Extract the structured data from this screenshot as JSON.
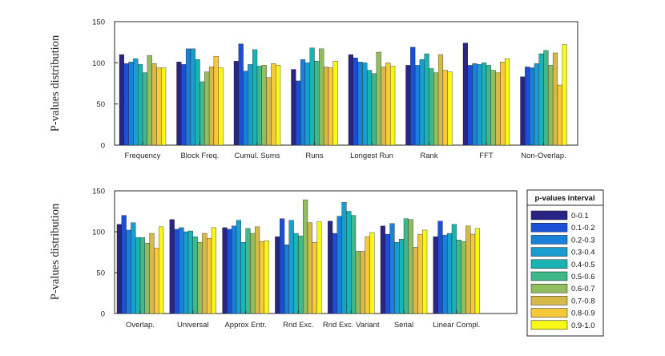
{
  "chart_data": [
    {
      "type": "bar",
      "panel": "top",
      "ylabel": "P-values distribution",
      "ylim": [
        0,
        150
      ],
      "yticks": [
        "0",
        "50",
        "100",
        "150"
      ],
      "categories": [
        "Frequency",
        "Block Freq.",
        "Cumul. Sums",
        "Runs",
        "Longest Run",
        "Rank",
        "FFT",
        "Non-Overlap."
      ],
      "series": [
        {
          "name": "0-0.1",
          "values": [
            110,
            101,
            102,
            92,
            110,
            97,
            124,
            83
          ]
        },
        {
          "name": "0.1-0.2",
          "values": [
            99,
            98,
            123,
            78,
            106,
            119,
            97,
            95
          ]
        },
        {
          "name": "0.2-0.3",
          "values": [
            101,
            117,
            90,
            104,
            101,
            97,
            99,
            94
          ]
        },
        {
          "name": "0.3-0.4",
          "values": [
            105,
            117,
            98,
            100,
            100,
            104,
            98,
            99
          ]
        },
        {
          "name": "0.4-0.5",
          "values": [
            98,
            104,
            116,
            118,
            91,
            111,
            100,
            111
          ]
        },
        {
          "name": "0.5-0.6",
          "values": [
            88,
            77,
            96,
            102,
            87,
            93,
            97,
            115
          ]
        },
        {
          "name": "0.6-0.7",
          "values": [
            109,
            89,
            97,
            117,
            113,
            88,
            91,
            97
          ]
        },
        {
          "name": "0.7-0.8",
          "values": [
            99,
            95,
            82,
            95,
            95,
            110,
            88,
            112
          ]
        },
        {
          "name": "0.8-0.9",
          "values": [
            94,
            108,
            99,
            94,
            100,
            91,
            101,
            73
          ]
        },
        {
          "name": "0.9-1.0",
          "values": [
            94,
            94,
            97,
            102,
            96,
            89,
            105,
            122
          ]
        }
      ]
    },
    {
      "type": "bar",
      "panel": "bottom",
      "ylabel": "P-values distribution",
      "ylim": [
        0,
        150
      ],
      "yticks": [
        "0",
        "50",
        "100",
        "150"
      ],
      "categories": [
        "Overlap.",
        "Universal",
        "Approx Entr.",
        "Rnd Exc.",
        "Rnd Exc. Variant",
        "Serial",
        "Linear Compl."
      ],
      "series": [
        {
          "name": "0-0.1",
          "values": [
            109,
            115,
            105,
            94,
            113,
            107,
            94
          ]
        },
        {
          "name": "0.1-0.2",
          "values": [
            120,
            103,
            103,
            116,
            98,
            97,
            113
          ]
        },
        {
          "name": "0.2-0.3",
          "values": [
            102,
            105,
            107,
            84,
            119,
            110,
            96
          ]
        },
        {
          "name": "0.3-0.4",
          "values": [
            111,
            100,
            114,
            114,
            136,
            87,
            98
          ]
        },
        {
          "name": "0.4-0.5",
          "values": [
            93,
            101,
            87,
            98,
            125,
            91,
            109
          ]
        },
        {
          "name": "0.5-0.6",
          "values": [
            93,
            94,
            104,
            95,
            120,
            116,
            90
          ]
        },
        {
          "name": "0.6-0.7",
          "values": [
            86,
            87,
            98,
            139,
            76,
            115,
            88
          ]
        },
        {
          "name": "0.7-0.8",
          "values": [
            98,
            98,
            106,
            111,
            76,
            81,
            107
          ]
        },
        {
          "name": "0.8-0.9",
          "values": [
            80,
            92,
            88,
            87,
            94,
            97,
            97
          ]
        },
        {
          "name": "0.9-1.0",
          "values": [
            106,
            105,
            89,
            112,
            99,
            102,
            104
          ]
        }
      ]
    }
  ],
  "legend": {
    "title": "p-values interval",
    "placement": "right of bottom panel",
    "items": [
      "0-0.1",
      "0.1-0.2",
      "0.2-0.3",
      "0.3-0.4",
      "0.4-0.5",
      "0.5-0.6",
      "0.6-0.7",
      "0.7-0.8",
      "0.8-0.9",
      "0.9-1.0"
    ]
  },
  "colors": [
    "#2a2584",
    "#1b4fd8",
    "#1a80d9",
    "#1a9ecf",
    "#1ab3b3",
    "#40b88a",
    "#92bd5e",
    "#d7b94a",
    "#f6c83a",
    "#f8f816"
  ]
}
